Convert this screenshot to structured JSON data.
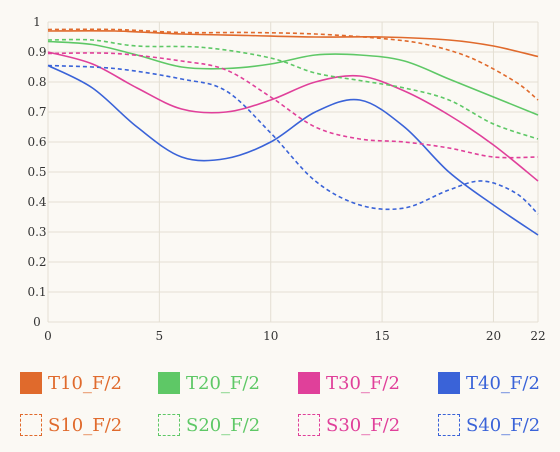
{
  "chart_data": {
    "type": "line",
    "title": "",
    "xlabel": "",
    "ylabel": "",
    "xlim": [
      0,
      22
    ],
    "ylim": [
      0,
      1
    ],
    "x_ticks": [
      "0",
      "5",
      "10",
      "15",
      "20",
      "22"
    ],
    "y_ticks": [
      "0",
      "0.1",
      "0.2",
      "0.3",
      "0.4",
      "0.5",
      "0.6",
      "0.7",
      "0.8",
      "0.9",
      "1"
    ],
    "grid": true,
    "legend_position": "bottom",
    "series": [
      {
        "name": "T10_F/2",
        "color": "#e06a2c",
        "dashed": false,
        "points": [
          [
            0,
            0.97
          ],
          [
            3,
            0.97
          ],
          [
            6,
            0.96
          ],
          [
            9,
            0.955
          ],
          [
            12,
            0.95
          ],
          [
            15,
            0.95
          ],
          [
            18,
            0.94
          ],
          [
            20,
            0.92
          ],
          [
            22,
            0.885
          ]
        ]
      },
      {
        "name": "T20_F/2",
        "color": "#5ec866",
        "dashed": false,
        "points": [
          [
            0,
            0.935
          ],
          [
            2,
            0.925
          ],
          [
            4,
            0.89
          ],
          [
            6,
            0.85
          ],
          [
            8,
            0.845
          ],
          [
            10,
            0.86
          ],
          [
            12,
            0.89
          ],
          [
            14,
            0.89
          ],
          [
            16,
            0.87
          ],
          [
            18,
            0.81
          ],
          [
            20,
            0.75
          ],
          [
            22,
            0.69
          ]
        ]
      },
      {
        "name": "T30_F/2",
        "color": "#e0409a",
        "dashed": false,
        "points": [
          [
            0,
            0.9
          ],
          [
            2,
            0.86
          ],
          [
            4,
            0.78
          ],
          [
            6,
            0.71
          ],
          [
            8,
            0.7
          ],
          [
            10,
            0.74
          ],
          [
            12,
            0.8
          ],
          [
            14,
            0.82
          ],
          [
            16,
            0.77
          ],
          [
            18,
            0.69
          ],
          [
            20,
            0.59
          ],
          [
            22,
            0.47
          ]
        ]
      },
      {
        "name": "T40_F/2",
        "color": "#3a63d8",
        "dashed": false,
        "points": [
          [
            0,
            0.855
          ],
          [
            2,
            0.78
          ],
          [
            4,
            0.65
          ],
          [
            6,
            0.55
          ],
          [
            8,
            0.545
          ],
          [
            10,
            0.6
          ],
          [
            12,
            0.7
          ],
          [
            14,
            0.74
          ],
          [
            16,
            0.65
          ],
          [
            18,
            0.5
          ],
          [
            20,
            0.39
          ],
          [
            22,
            0.29
          ]
        ]
      },
      {
        "name": "S10_F/2",
        "color": "#e06a2c",
        "dashed": true,
        "points": [
          [
            0,
            0.975
          ],
          [
            3,
            0.975
          ],
          [
            6,
            0.965
          ],
          [
            9,
            0.965
          ],
          [
            12,
            0.96
          ],
          [
            15,
            0.945
          ],
          [
            17,
            0.925
          ],
          [
            19,
            0.88
          ],
          [
            21,
            0.8
          ],
          [
            22,
            0.74
          ]
        ]
      },
      {
        "name": "S20_F/2",
        "color": "#5ec866",
        "dashed": true,
        "points": [
          [
            0,
            0.94
          ],
          [
            2,
            0.94
          ],
          [
            4,
            0.92
          ],
          [
            7,
            0.915
          ],
          [
            10,
            0.88
          ],
          [
            12,
            0.83
          ],
          [
            14,
            0.805
          ],
          [
            16,
            0.78
          ],
          [
            18,
            0.74
          ],
          [
            20,
            0.66
          ],
          [
            22,
            0.61
          ]
        ]
      },
      {
        "name": "S30_F/2",
        "color": "#e0409a",
        "dashed": true,
        "points": [
          [
            0,
            0.895
          ],
          [
            3,
            0.895
          ],
          [
            6,
            0.87
          ],
          [
            8,
            0.84
          ],
          [
            10,
            0.75
          ],
          [
            12,
            0.65
          ],
          [
            14,
            0.61
          ],
          [
            16,
            0.6
          ],
          [
            18,
            0.58
          ],
          [
            20,
            0.55
          ],
          [
            22,
            0.55
          ]
        ]
      },
      {
        "name": "S40_F/2",
        "color": "#3a63d8",
        "dashed": true,
        "points": [
          [
            0,
            0.855
          ],
          [
            3,
            0.845
          ],
          [
            6,
            0.81
          ],
          [
            8,
            0.77
          ],
          [
            10,
            0.63
          ],
          [
            12,
            0.47
          ],
          [
            14,
            0.39
          ],
          [
            16,
            0.38
          ],
          [
            18,
            0.44
          ],
          [
            19.5,
            0.47
          ],
          [
            21,
            0.43
          ],
          [
            22,
            0.36
          ]
        ]
      }
    ]
  }
}
